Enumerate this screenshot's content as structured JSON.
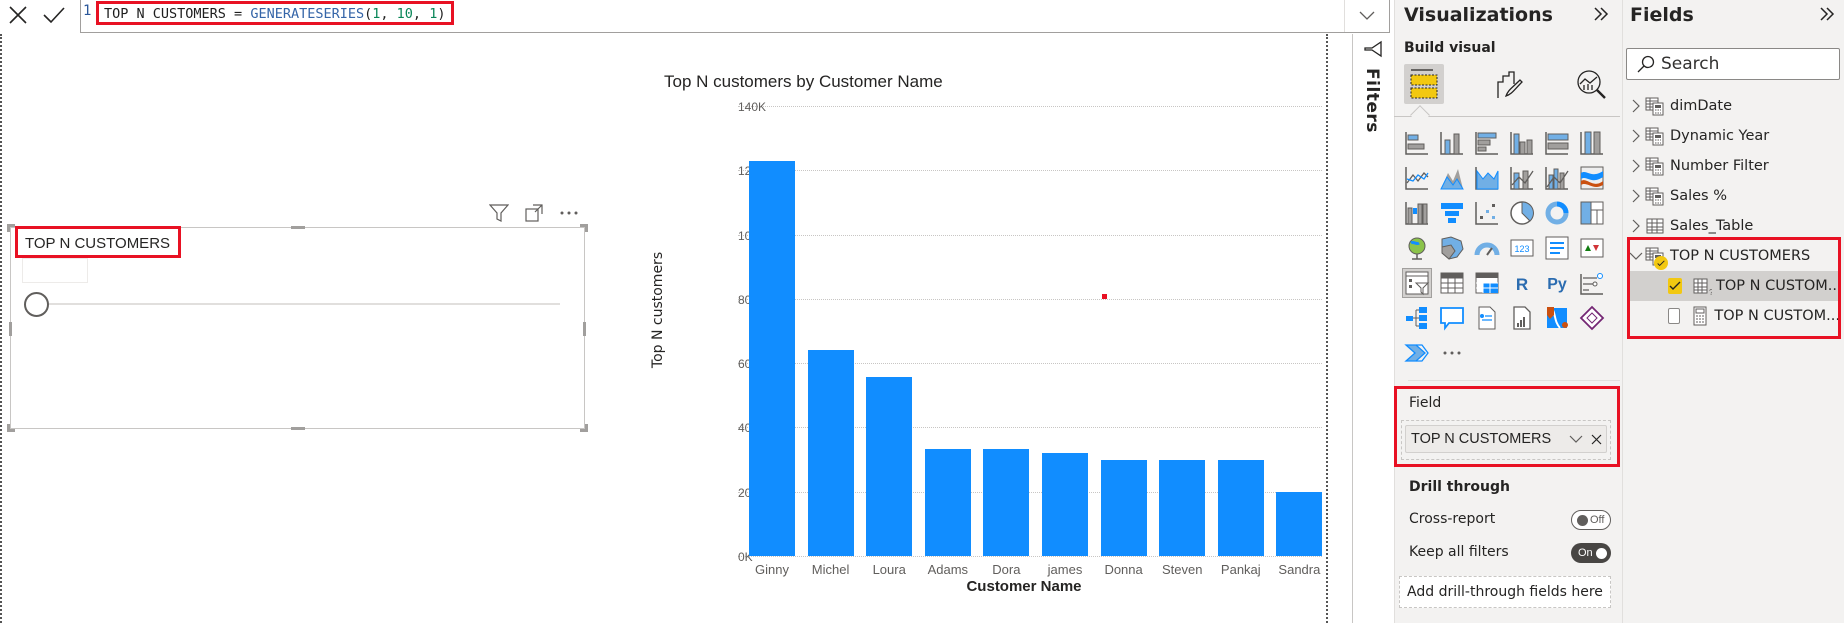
{
  "formula_bar": {
    "cancel_icon": "close-icon",
    "commit_icon": "check-icon",
    "line_number": "1",
    "code": {
      "variable": "TOP N CUSTOMERS",
      "operator": " = ",
      "function": "GENERATESERIES",
      "open": "(",
      "arg1": "1",
      "sep1": ", ",
      "arg2": "10",
      "sep2": ", ",
      "arg3": "1",
      "close": ")"
    },
    "expand_icon": "chevron-down-icon"
  },
  "slicer": {
    "title": "TOP N CUSTOMERS",
    "header_icons": [
      "filter-icon",
      "focus-mode-icon",
      "more-options-icon"
    ]
  },
  "chart_data": {
    "type": "bar",
    "title": "Top N customers by Customer Name",
    "xlabel": "Customer Name",
    "ylabel": "Top N customers",
    "categories": [
      "Ginny",
      "Michel",
      "Loura",
      "Adams",
      "Dora",
      "james",
      "Donna",
      "Steven",
      "Pankaj",
      "Sandra"
    ],
    "values": [
      123000,
      64000,
      55600,
      33200,
      33200,
      32000,
      29800,
      29800,
      29800,
      20000
    ],
    "yticks": [
      "0K",
      "20K",
      "40K",
      "60K",
      "80K",
      "100K",
      "120K",
      "140K"
    ],
    "ylim": [
      0,
      140000
    ],
    "grid": true,
    "bar_color": "#118dff",
    "legend": null
  },
  "filters_strip": {
    "label": "Filters",
    "icon": "filter-collapse-icon"
  },
  "visualizations": {
    "title": "Visualizations",
    "collapse_icon": "double-chevron-right-icon",
    "build_visual_label": "Build visual",
    "tabs": [
      {
        "name": "build-visual",
        "active": true
      },
      {
        "name": "format-visual",
        "active": false
      },
      {
        "name": "analytics",
        "active": false
      }
    ],
    "gallery": [
      "stacked-bar",
      "stacked-column",
      "clustered-bar",
      "clustered-column",
      "100-stacked-bar",
      "100-stacked-column",
      "line",
      "area",
      "stacked-area",
      "line-stacked-column",
      "line-clustered-column",
      "ribbon",
      "waterfall",
      "funnel",
      "scatter",
      "pie",
      "donut",
      "treemap",
      "map",
      "filled-map",
      "gauge",
      "card",
      "multi-row-card",
      "kpi",
      "slicer",
      "table",
      "matrix",
      "r-visual",
      "python-visual",
      "key-influencers",
      "decomposition-tree",
      "qa",
      "smart-narrative",
      "paginated-report",
      "azure-map",
      "power-apps",
      "power-automate",
      "more-visuals"
    ],
    "selected_visual": "slicer",
    "field_well": {
      "label": "Field",
      "value": "TOP N CUSTOMERS"
    },
    "drill_through": {
      "title": "Drill through",
      "cross_report_label": "Cross-report",
      "cross_report_state": "Off",
      "keep_filters_label": "Keep all filters",
      "keep_filters_state": "On",
      "drop_placeholder": "Add drill-through fields here"
    },
    "accent_color": "#f2c811"
  },
  "fields": {
    "title": "Fields",
    "collapse_icon": "double-chevron-right-icon",
    "search_placeholder": "Search",
    "tables": [
      {
        "name": "dimDate",
        "expanded": false,
        "type": "calculated-table"
      },
      {
        "name": "Dynamic Year",
        "expanded": false,
        "type": "calculated-table"
      },
      {
        "name": "Number Filter",
        "expanded": false,
        "type": "calculated-table"
      },
      {
        "name": "Sales %",
        "expanded": false,
        "type": "calculated-table"
      },
      {
        "name": "Sales_Table",
        "expanded": false,
        "type": "table"
      },
      {
        "name": "TOP N CUSTOMERS",
        "expanded": true,
        "type": "calculated-table",
        "in_use": true,
        "children": [
          {
            "name": "TOP N CUSTOM...",
            "checked": true,
            "type": "parameter-column"
          },
          {
            "name": "TOP N CUSTOM...",
            "checked": false,
            "type": "measure"
          }
        ]
      }
    ]
  }
}
